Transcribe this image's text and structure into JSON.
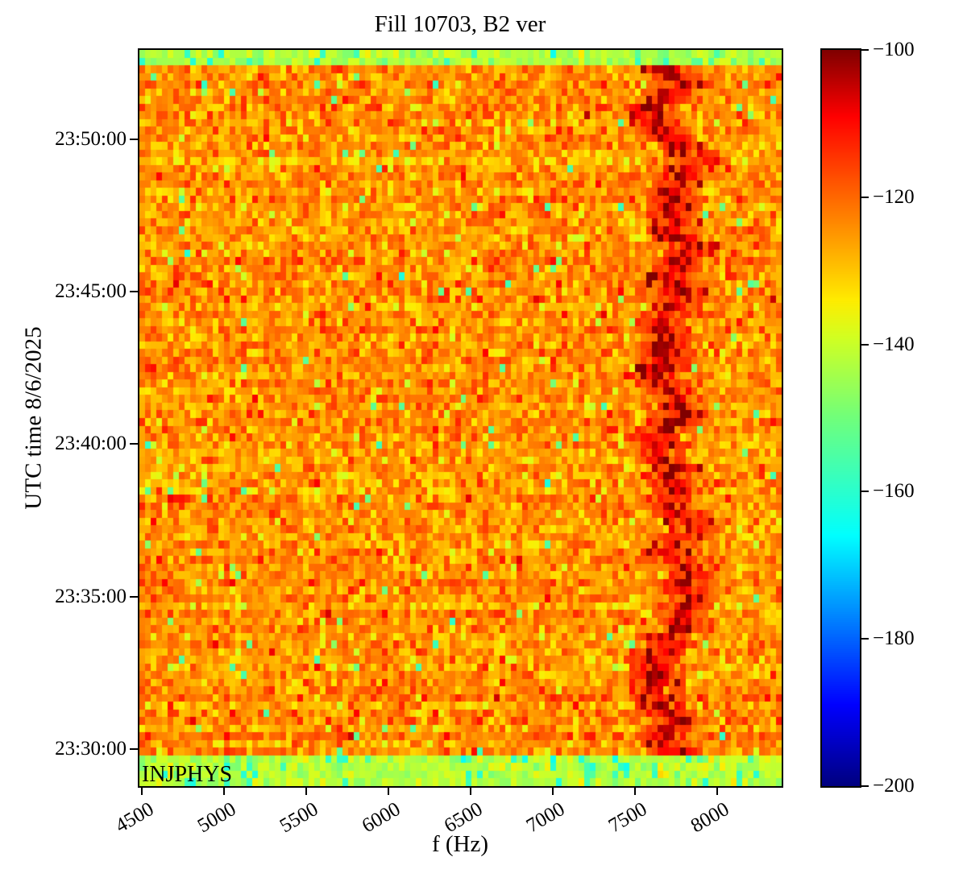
{
  "chart_data": {
    "type": "heatmap",
    "title": "Fill 10703, B2 ver",
    "xlabel": "f (Hz)",
    "ylabel": "UTC time 8/6/2025",
    "annotation": "INJPHYS",
    "grid": false,
    "legend": "none",
    "xlim": [
      4484,
      8390
    ],
    "y_top_time": "23:52:56",
    "y_bottom_time": "23:28:47",
    "xticks": [
      4500,
      5000,
      5500,
      6000,
      6500,
      7000,
      7500,
      8000
    ],
    "yticks": [
      "23:50:00",
      "23:45:00",
      "23:40:00",
      "23:35:00",
      "23:30:00"
    ],
    "colorbar": {
      "min": -200,
      "max": -100,
      "ticks": [
        -100,
        -120,
        -140,
        -160,
        -180,
        -200
      ],
      "colormap": "jet",
      "stops": [
        [
          0.0,
          "#000080"
        ],
        [
          0.11,
          "#0000ff"
        ],
        [
          0.34,
          "#00ffff"
        ],
        [
          0.5,
          "#70ff7b"
        ],
        [
          0.61,
          "#d2ff21"
        ],
        [
          0.66,
          "#ffec00"
        ],
        [
          0.8,
          "#ff6800"
        ],
        [
          0.89,
          "#ff1300"
        ],
        [
          0.91,
          "#ff0000"
        ],
        [
          1.0,
          "#800000"
        ]
      ]
    },
    "heatmap": {
      "cols": 114,
      "rows": 96,
      "seed": 20250806,
      "body": {
        "mean": -125,
        "std": 5.5,
        "row_jitter": 1.4,
        "speck_prob": 0.012,
        "speck_value": -152,
        "speck_std": 4
      },
      "top_band": {
        "rows": 2,
        "mean": -143,
        "std": 3.5,
        "speck_prob": 0.1,
        "speck_value": -159,
        "speck_std": 3
      },
      "bottom_band": {
        "rows": 4,
        "mean": -142,
        "std": 3.5,
        "speck_prob": 0.1,
        "speck_value": -159,
        "speck_std": 3
      },
      "injection_line": {
        "center_freq": 7740,
        "wander_persistence": 0.8,
        "wander_step_hz": 55,
        "wander_min_hz": -140,
        "wander_max_hz": 240,
        "core_halfwidth_hz": 60,
        "core_dark_prob": 0.5,
        "core_dark_value": -102,
        "core_dark_std": 2,
        "core_value": -111,
        "core_std": 3,
        "mid_halfwidth_hz": 160,
        "mid_value": -116,
        "mid_std": 4,
        "mid_dark_prob": 0.1,
        "outer_halfwidth_hz": 230,
        "outer_value": -119,
        "outer_std": 5,
        "static_line_freq": 7860,
        "static_line_halfwidth_hz": 20,
        "static_line_value": -116,
        "static_line_std": 3
      }
    },
    "colors": {
      "text": "#000000",
      "axes": "#000000",
      "background": "#ffffff"
    }
  }
}
